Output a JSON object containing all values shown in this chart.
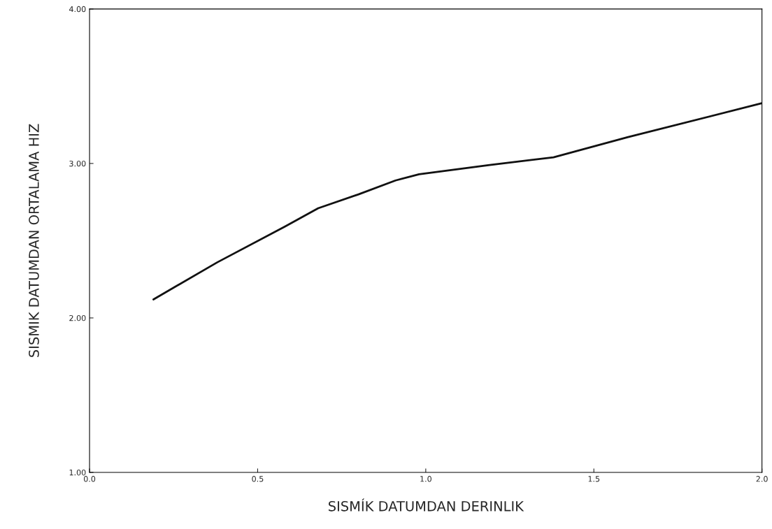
{
  "chart_data": {
    "type": "line",
    "xlabel": "SISMÍK DATUMDAN DERINLIK",
    "ylabel": "SISMIK DATUMDAN ORTALAMA HIZ",
    "x": [
      0.19,
      0.38,
      0.58,
      0.68,
      0.8,
      0.91,
      0.98,
      1.19,
      1.38,
      1.6,
      2.0
    ],
    "values": [
      2.12,
      2.36,
      2.59,
      2.71,
      2.8,
      2.89,
      2.93,
      2.99,
      3.04,
      3.17,
      3.39
    ],
    "color": "#111111",
    "xlim": [
      0.0,
      2.0
    ],
    "xticks": [
      {
        "value": 0.0,
        "label": "0.0"
      },
      0.5,
      {
        "value": 1.0,
        "label": "1.0"
      },
      1.5,
      {
        "value": 2.0,
        "label": "2.0"
      }
    ],
    "ylim": [
      1.0,
      4.0
    ],
    "yticks": [
      {
        "value": 1.0,
        "label": "1.00"
      },
      {
        "value": 2.0,
        "label": "2.00"
      },
      {
        "value": 3.0,
        "label": "3.00"
      },
      {
        "value": 4.0,
        "label": "4.00"
      }
    ],
    "grid": false
  }
}
